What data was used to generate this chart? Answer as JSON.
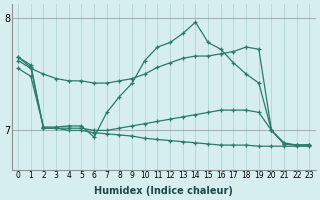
{
  "xlabel": "Humidex (Indice chaleur)",
  "bg_color": "#d7eeee",
  "line_color": "#2a7a6a",
  "grid_color": "#b8d8d8",
  "xmin": -0.5,
  "xmax": 23.5,
  "ymin": 6.65,
  "ymax": 8.12,
  "yticks": [
    7,
    8
  ],
  "xticks": [
    0,
    1,
    2,
    3,
    4,
    5,
    6,
    7,
    8,
    9,
    10,
    11,
    12,
    13,
    14,
    15,
    16,
    17,
    18,
    19,
    20,
    21,
    22,
    23
  ],
  "lines": [
    {
      "x": [
        0,
        1,
        2,
        3,
        4,
        5,
        6,
        7,
        8,
        9,
        10,
        11,
        12,
        13,
        14,
        15,
        16,
        17,
        18,
        19,
        20,
        21,
        22,
        23
      ],
      "y": [
        7.55,
        7.48,
        7.03,
        7.03,
        7.04,
        7.04,
        6.94,
        7.16,
        7.3,
        7.42,
        7.62,
        7.74,
        7.78,
        7.86,
        7.96,
        7.78,
        7.72,
        7.6,
        7.5,
        7.42,
        7.0,
        6.89,
        6.87,
        6.87
      ]
    },
    {
      "x": [
        0,
        1,
        2,
        3,
        4,
        5,
        6,
        7,
        8,
        9,
        10,
        11,
        12,
        13,
        14,
        15,
        16,
        17,
        18,
        19,
        20,
        21,
        22,
        23
      ],
      "y": [
        7.62,
        7.55,
        7.5,
        7.46,
        7.44,
        7.44,
        7.42,
        7.42,
        7.44,
        7.46,
        7.5,
        7.56,
        7.6,
        7.64,
        7.66,
        7.66,
        7.68,
        7.7,
        7.74,
        7.72,
        7.0,
        6.88,
        6.87,
        6.87
      ]
    },
    {
      "x": [
        0,
        1,
        2,
        3,
        4,
        5,
        6,
        7,
        8,
        9,
        10,
        11,
        12,
        13,
        14,
        15,
        16,
        17,
        18,
        19,
        20,
        21,
        22,
        23
      ],
      "y": [
        7.65,
        7.56,
        7.02,
        7.02,
        7.02,
        7.02,
        7.0,
        7.0,
        7.02,
        7.04,
        7.06,
        7.08,
        7.1,
        7.12,
        7.14,
        7.16,
        7.18,
        7.18,
        7.18,
        7.16,
        7.0,
        6.88,
        6.87,
        6.87
      ]
    },
    {
      "x": [
        0,
        1,
        2,
        3,
        4,
        5,
        6,
        7,
        8,
        9,
        10,
        11,
        12,
        13,
        14,
        15,
        16,
        17,
        18,
        19,
        20,
        21,
        22,
        23
      ],
      "y": [
        7.65,
        7.58,
        7.02,
        7.02,
        7.0,
        7.0,
        6.98,
        6.97,
        6.96,
        6.95,
        6.93,
        6.92,
        6.91,
        6.9,
        6.89,
        6.88,
        6.87,
        6.87,
        6.87,
        6.86,
        6.86,
        6.86,
        6.86,
        6.86
      ]
    }
  ]
}
